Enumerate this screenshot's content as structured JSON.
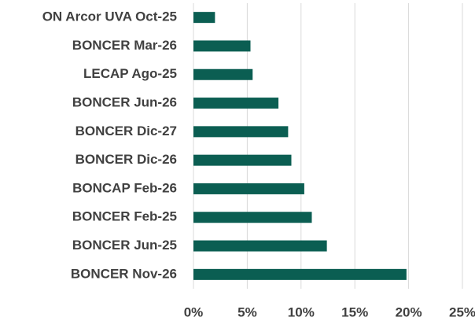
{
  "chart_data": {
    "type": "barh",
    "categories": [
      "ON Arcor UVA Oct-25",
      "BONCER Mar-26",
      "LECAP Ago-25",
      "BONCER Jun-26",
      "BONCER Dic-27",
      "BONCER Dic-26",
      "BONCAP Feb-26",
      "BONCER Feb-25",
      "BONCER Jun-25",
      "BONCER Nov-26"
    ],
    "values": [
      2.0,
      5.3,
      5.5,
      7.9,
      8.8,
      9.1,
      10.3,
      11.0,
      12.4,
      19.8
    ],
    "color": "#0b5e52",
    "xlim": [
      0,
      25
    ],
    "xticks": [
      {
        "value": 0,
        "label": "0%"
      },
      {
        "value": 5,
        "label": "5%"
      },
      {
        "value": 10,
        "label": "10%"
      },
      {
        "value": 15,
        "label": "15%"
      },
      {
        "value": 20,
        "label": "20%"
      },
      {
        "value": 25,
        "label": "25%"
      }
    ],
    "grid": true
  }
}
